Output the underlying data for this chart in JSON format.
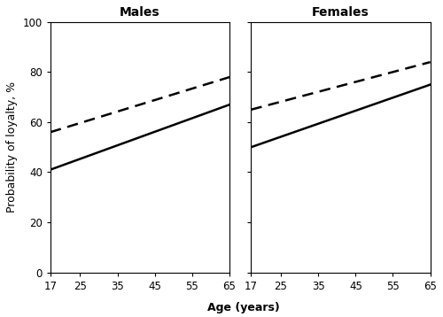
{
  "subplots": [
    "Males",
    "Females"
  ],
  "x_ticks": [
    17,
    25,
    35,
    45,
    55,
    65
  ],
  "x_label": "Age (years)",
  "y_label": "Probability of loyalty, %",
  "ylim": [
    0,
    100
  ],
  "yticks": [
    0,
    20,
    40,
    60,
    80,
    100
  ],
  "males": {
    "solid": {
      "x": [
        17,
        65
      ],
      "y": [
        41,
        67
      ]
    },
    "dashed": {
      "x": [
        17,
        65
      ],
      "y": [
        56,
        78
      ]
    }
  },
  "females": {
    "solid": {
      "x": [
        17,
        65
      ],
      "y": [
        50,
        75
      ]
    },
    "dashed": {
      "x": [
        17,
        65
      ],
      "y": [
        65,
        84
      ]
    }
  },
  "line_color": "#000000",
  "line_width": 1.8,
  "background_color": "#ffffff",
  "title_fontsize": 10,
  "axis_label_fontsize": 9,
  "tick_fontsize": 8.5
}
